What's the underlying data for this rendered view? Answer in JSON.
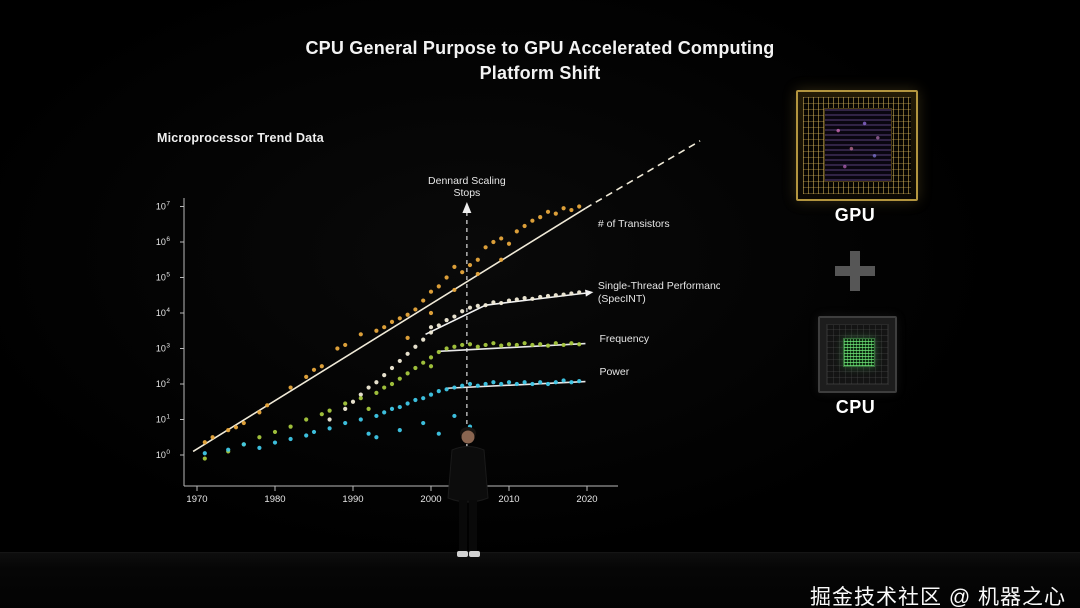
{
  "slide": {
    "title_line1": "CPU General Purpose to GPU Accelerated Computing",
    "title_line2": "Platform Shift"
  },
  "chart_data": {
    "type": "scatter",
    "title": "Microprocessor Trend Data",
    "x_ticks": [
      1970,
      1980,
      1990,
      2000,
      2010,
      2020
    ],
    "x_range": [
      1969,
      2022
    ],
    "y_scale": "log10",
    "y_tick_exponents": [
      0,
      1,
      2,
      3,
      4,
      5,
      6,
      7
    ],
    "grid": false,
    "legend_position": "right-of-series",
    "annotation": {
      "lines": [
        "Dennard Scaling",
        "Stops"
      ],
      "x": 2004.6
    },
    "series": [
      {
        "name": "# of Transistors",
        "color": "#e8a83c",
        "label_lines": [
          "# of Transistors"
        ],
        "label_x": 2021.4,
        "label_y_log10": 6.42,
        "points": [
          [
            1971,
            0.36
          ],
          [
            1972,
            0.5
          ],
          [
            1974,
            0.7
          ],
          [
            1975,
            0.78
          ],
          [
            1976,
            0.9
          ],
          [
            1978,
            1.2
          ],
          [
            1979,
            1.4
          ],
          [
            1982,
            1.9
          ],
          [
            1984,
            2.2
          ],
          [
            1985,
            2.4
          ],
          [
            1986,
            2.5
          ],
          [
            1988,
            3.0
          ],
          [
            1989,
            3.1
          ],
          [
            1991,
            3.4
          ],
          [
            1993,
            3.5
          ],
          [
            1994,
            3.6
          ],
          [
            1995,
            3.75
          ],
          [
            1996,
            3.85
          ],
          [
            1997,
            3.3
          ],
          [
            1997,
            3.95
          ],
          [
            1998,
            4.1
          ],
          [
            1999,
            4.35
          ],
          [
            2000,
            4.0
          ],
          [
            2000,
            4.6
          ],
          [
            2001,
            4.75
          ],
          [
            2002,
            5.0
          ],
          [
            2003,
            4.65
          ],
          [
            2003,
            5.3
          ],
          [
            2004,
            5.15
          ],
          [
            2005,
            5.35
          ],
          [
            2006,
            5.1
          ],
          [
            2006,
            5.5
          ],
          [
            2007,
            5.85
          ],
          [
            2008,
            6.0
          ],
          [
            2009,
            5.5
          ],
          [
            2009,
            6.1
          ],
          [
            2010,
            5.95
          ],
          [
            2011,
            6.3
          ],
          [
            2012,
            6.45
          ],
          [
            2013,
            6.6
          ],
          [
            2014,
            6.7
          ],
          [
            2015,
            6.85
          ],
          [
            2016,
            6.8
          ],
          [
            2017,
            6.95
          ],
          [
            2018,
            6.9
          ],
          [
            2019,
            7.0
          ]
        ]
      },
      {
        "name": "Single-Thread Performance (SpecINT)",
        "color": "#f2ecd8",
        "label_lines": [
          "Single-Thread Performance",
          "(SpecINT)"
        ],
        "label_x": 2021.4,
        "label_y_log10": 4.68,
        "points": [
          [
            1987,
            1.0
          ],
          [
            1989,
            1.3
          ],
          [
            1990,
            1.5
          ],
          [
            1991,
            1.7
          ],
          [
            1992,
            1.9
          ],
          [
            1993,
            2.05
          ],
          [
            1994,
            2.25
          ],
          [
            1995,
            2.45
          ],
          [
            1996,
            2.65
          ],
          [
            1997,
            2.85
          ],
          [
            1998,
            3.05
          ],
          [
            1999,
            3.25
          ],
          [
            2000,
            3.45
          ],
          [
            2000,
            3.6
          ],
          [
            2001,
            3.65
          ],
          [
            2002,
            3.8
          ],
          [
            2003,
            3.9
          ],
          [
            2004,
            4.05
          ],
          [
            2005,
            4.15
          ],
          [
            2006,
            4.2
          ],
          [
            2007,
            4.22
          ],
          [
            2008,
            4.3
          ],
          [
            2009,
            4.28
          ],
          [
            2010,
            4.35
          ],
          [
            2011,
            4.38
          ],
          [
            2012,
            4.42
          ],
          [
            2013,
            4.4
          ],
          [
            2014,
            4.45
          ],
          [
            2015,
            4.48
          ],
          [
            2016,
            4.5
          ],
          [
            2017,
            4.52
          ],
          [
            2018,
            4.55
          ],
          [
            2019,
            4.58
          ]
        ]
      },
      {
        "name": "Frequency",
        "color": "#a6c83e",
        "label_lines": [
          "Frequency"
        ],
        "label_x": 2021.6,
        "label_y_log10": 3.18,
        "points": [
          [
            1971,
            -0.1
          ],
          [
            1974,
            0.1
          ],
          [
            1976,
            0.3
          ],
          [
            1978,
            0.5
          ],
          [
            1980,
            0.65
          ],
          [
            1982,
            0.8
          ],
          [
            1984,
            1.0
          ],
          [
            1986,
            1.15
          ],
          [
            1987,
            1.25
          ],
          [
            1989,
            1.45
          ],
          [
            1991,
            1.6
          ],
          [
            1992,
            1.3
          ],
          [
            1993,
            1.75
          ],
          [
            1994,
            1.9
          ],
          [
            1995,
            2.0
          ],
          [
            1996,
            2.15
          ],
          [
            1997,
            2.3
          ],
          [
            1998,
            2.45
          ],
          [
            1999,
            2.6
          ],
          [
            2000,
            2.5
          ],
          [
            2000,
            2.75
          ],
          [
            2001,
            2.9
          ],
          [
            2002,
            3.0
          ],
          [
            2003,
            3.05
          ],
          [
            2004,
            3.1
          ],
          [
            2005,
            3.12
          ],
          [
            2006,
            3.05
          ],
          [
            2007,
            3.1
          ],
          [
            2008,
            3.15
          ],
          [
            2009,
            3.08
          ],
          [
            2010,
            3.12
          ],
          [
            2011,
            3.1
          ],
          [
            2012,
            3.15
          ],
          [
            2013,
            3.1
          ],
          [
            2014,
            3.12
          ],
          [
            2015,
            3.08
          ],
          [
            2016,
            3.15
          ],
          [
            2017,
            3.1
          ],
          [
            2018,
            3.15
          ],
          [
            2019,
            3.12
          ]
        ]
      },
      {
        "name": "Power",
        "color": "#3fc8e8",
        "label_lines": [
          "Power"
        ],
        "label_x": 2021.6,
        "label_y_log10": 2.26,
        "points": [
          [
            1971,
            0.05
          ],
          [
            1974,
            0.15
          ],
          [
            1976,
            0.3
          ],
          [
            1978,
            0.2
          ],
          [
            1980,
            0.35
          ],
          [
            1982,
            0.45
          ],
          [
            1984,
            0.55
          ],
          [
            1985,
            0.65
          ],
          [
            1987,
            0.75
          ],
          [
            1989,
            0.9
          ],
          [
            1991,
            1.0
          ],
          [
            1992,
            0.6
          ],
          [
            1993,
            0.5
          ],
          [
            1993,
            1.1
          ],
          [
            1994,
            1.2
          ],
          [
            1995,
            1.3
          ],
          [
            1996,
            0.7
          ],
          [
            1996,
            1.35
          ],
          [
            1997,
            1.45
          ],
          [
            1998,
            1.55
          ],
          [
            1999,
            0.9
          ],
          [
            1999,
            1.6
          ],
          [
            2000,
            1.7
          ],
          [
            2001,
            0.6
          ],
          [
            2001,
            1.8
          ],
          [
            2002,
            1.85
          ],
          [
            2003,
            1.1
          ],
          [
            2003,
            1.9
          ],
          [
            2004,
            1.95
          ],
          [
            2005,
            0.8
          ],
          [
            2005,
            2.0
          ],
          [
            2006,
            1.95
          ],
          [
            2007,
            2.0
          ],
          [
            2008,
            2.05
          ],
          [
            2009,
            2.0
          ],
          [
            2010,
            2.05
          ],
          [
            2011,
            2.0
          ],
          [
            2012,
            2.05
          ],
          [
            2013,
            2.0
          ],
          [
            2014,
            2.05
          ],
          [
            2015,
            2.0
          ],
          [
            2016,
            2.05
          ],
          [
            2017,
            2.1
          ],
          [
            2018,
            2.05
          ],
          [
            2019,
            2.08
          ]
        ]
      }
    ],
    "trend_lines": [
      {
        "name": "transistors-fit",
        "color": "#f0ead8",
        "dashed": false,
        "arrow": false,
        "points": [
          [
            1969.5,
            0.1
          ],
          [
            2019.8,
            6.95
          ]
        ]
      },
      {
        "name": "transistors-projection",
        "color": "#f0ead8",
        "dashed": true,
        "arrow": false,
        "points": [
          [
            2019.8,
            6.95
          ],
          [
            2034.5,
            8.85
          ]
        ]
      },
      {
        "name": "single-thread-fit",
        "color": "#f2f2f2",
        "dashed": false,
        "arrow": true,
        "points": [
          [
            1999.3,
            3.4
          ],
          [
            2007,
            4.22
          ],
          [
            2019.8,
            4.56
          ]
        ]
      },
      {
        "name": "frequency-fit",
        "color": "#e8e8e8",
        "dashed": false,
        "arrow": false,
        "points": [
          [
            2001,
            2.92
          ],
          [
            2019.8,
            3.14
          ]
        ]
      },
      {
        "name": "power-fit",
        "color": "#e8e8e8",
        "dashed": false,
        "arrow": false,
        "points": [
          [
            2002,
            1.88
          ],
          [
            2019.8,
            2.07
          ]
        ]
      }
    ]
  },
  "right_panel": {
    "gpu_label": "GPU",
    "plus_icon": "plus",
    "cpu_label": "CPU"
  },
  "watermark": "掘金技术社区 @ 机器之心"
}
